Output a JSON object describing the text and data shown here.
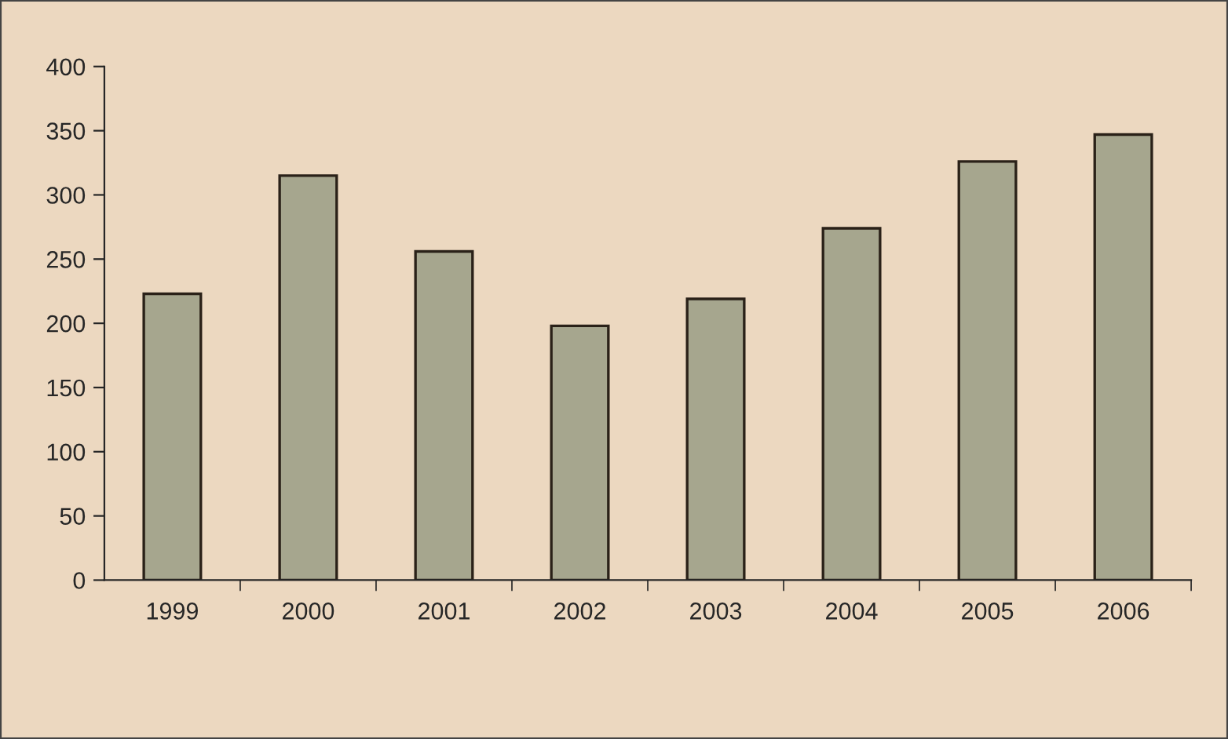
{
  "chart_data": {
    "type": "bar",
    "categories": [
      "1999",
      "2000",
      "2001",
      "2002",
      "2003",
      "2004",
      "2005",
      "2006"
    ],
    "values": [
      223,
      315,
      256,
      198,
      219,
      274,
      326,
      347
    ],
    "color": "#a6a68e",
    "ylim": [
      0,
      400
    ],
    "yticks": [
      0,
      50,
      100,
      150,
      200,
      250,
      300,
      350,
      400
    ],
    "grid": false
  }
}
